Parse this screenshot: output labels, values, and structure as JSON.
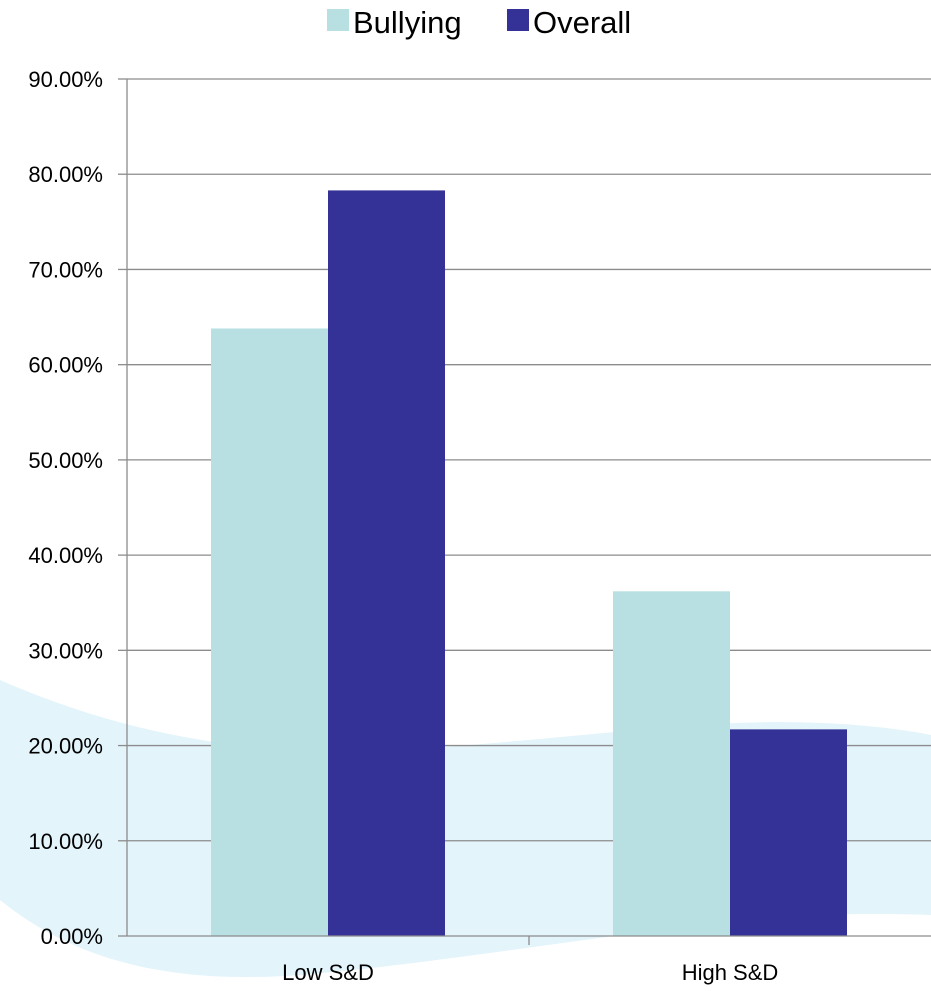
{
  "chart_data": {
    "type": "bar",
    "title": "",
    "xlabel": "",
    "ylabel": "",
    "categories": [
      "Low S&D",
      "High S&D"
    ],
    "series": [
      {
        "name": "Bullying",
        "color": "#b8e0e2",
        "values": [
          0.638,
          0.362
        ]
      },
      {
        "name": "Overall",
        "color": "#343296",
        "values": [
          0.783,
          0.217
        ]
      }
    ],
    "ylim": [
      0,
      0.9
    ],
    "yticks": [
      0,
      0.1,
      0.2,
      0.3,
      0.4,
      0.5,
      0.6,
      0.7,
      0.8,
      0.9
    ],
    "ytick_labels": [
      "0.00%",
      "10.00%",
      "20.00%",
      "30.00%",
      "40.00%",
      "50.00%",
      "60.00%",
      "70.00%",
      "80.00%",
      "90.00%"
    ],
    "grid": true,
    "legend": "top-center",
    "background_color": "#e3f4fb"
  }
}
